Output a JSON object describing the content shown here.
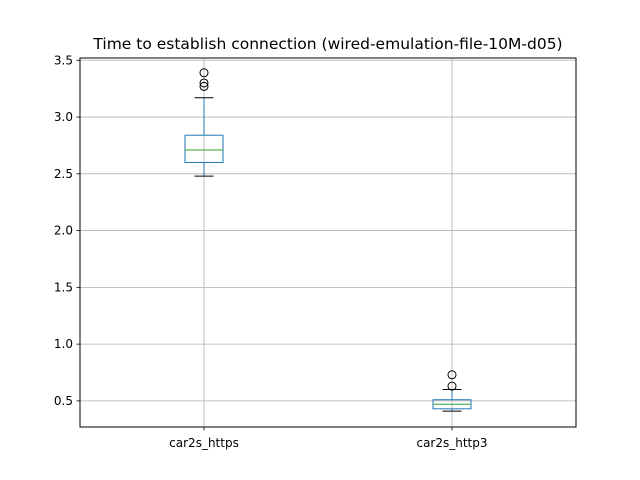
{
  "chart_data": {
    "type": "box",
    "title": "Time to establish connection (wired-emulation-file-10M-d05)",
    "xlabel": "",
    "ylabel": "",
    "categories": [
      "car2s_https",
      "car2s_http3"
    ],
    "ylim": [
      0.27,
      3.52
    ],
    "yticks": [
      0.5,
      1.0,
      1.5,
      2.0,
      2.5,
      3.0,
      3.5
    ],
    "ytick_labels": [
      "0.5",
      "1.0",
      "1.5",
      "2.0",
      "2.5",
      "3.0",
      "3.5"
    ],
    "grid": true,
    "boxes": [
      {
        "name": "car2s_https",
        "whisker_low": 2.48,
        "q1": 2.6,
        "median": 2.71,
        "q3": 2.84,
        "whisker_high": 3.17,
        "outliers": [
          3.27,
          3.3,
          3.39
        ]
      },
      {
        "name": "car2s_http3",
        "whisker_low": 0.41,
        "q1": 0.43,
        "median": 0.47,
        "q3": 0.51,
        "whisker_high": 0.6,
        "outliers": [
          0.63,
          0.73
        ]
      }
    ],
    "colors": {
      "box": "#1f77b4",
      "median": "#2ca02c",
      "whisker": "#000000",
      "grid": "#b0b0b0"
    }
  }
}
